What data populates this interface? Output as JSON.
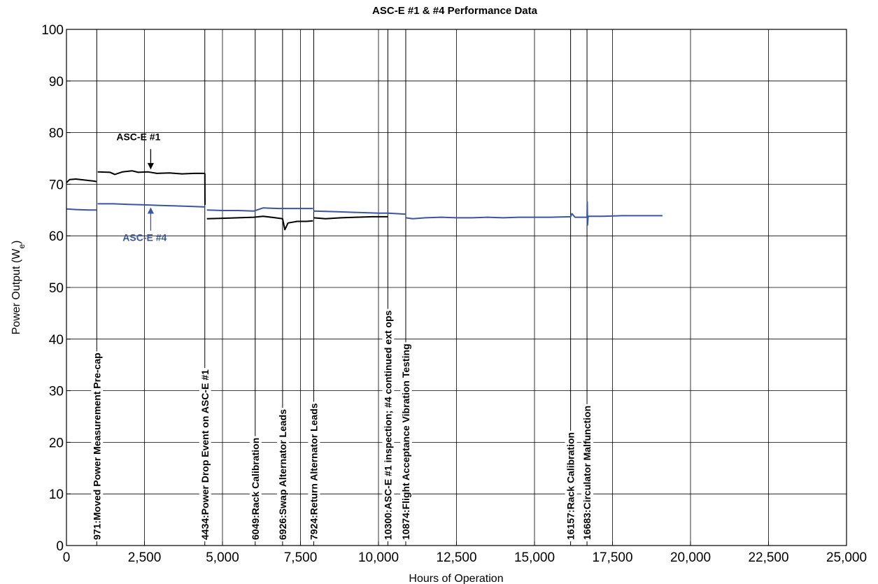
{
  "chart_data": {
    "type": "line",
    "title": "ASC-E #1 & #4 Performance Data",
    "xlabel": "Hours of Operation",
    "ylabel_main": "Power Output (W",
    "ylabel_sub": "e",
    "ylabel_close": ")",
    "xlim": [
      0,
      25000
    ],
    "ylim": [
      0,
      100
    ],
    "grid": true,
    "x_ticks": [
      {
        "value": 0,
        "label": "0"
      },
      {
        "value": 2500,
        "label": "2,500"
      },
      {
        "value": 5000,
        "label": "5,000"
      },
      {
        "value": 7500,
        "label": "7,500"
      },
      {
        "value": 10000,
        "label": "10,000"
      },
      {
        "value": 12500,
        "label": "12,500"
      },
      {
        "value": 15000,
        "label": "15,000"
      },
      {
        "value": 17500,
        "label": "17,500"
      },
      {
        "value": 20000,
        "label": "20,000"
      },
      {
        "value": 22500,
        "label": "22,500"
      },
      {
        "value": 25000,
        "label": "25,000"
      }
    ],
    "y_ticks": [
      {
        "value": 0,
        "label": "0"
      },
      {
        "value": 10,
        "label": "10"
      },
      {
        "value": 20,
        "label": "20"
      },
      {
        "value": 30,
        "label": "30"
      },
      {
        "value": 40,
        "label": "40"
      },
      {
        "value": 50,
        "label": "50"
      },
      {
        "value": 60,
        "label": "60"
      },
      {
        "value": 70,
        "label": "70"
      },
      {
        "value": 80,
        "label": "80"
      },
      {
        "value": 90,
        "label": "90"
      },
      {
        "value": 100,
        "label": "100"
      }
    ],
    "series": [
      {
        "name": "ASC-E #1",
        "color": "#000000",
        "segments": [
          [
            [
              0,
              70.3
            ],
            [
              100,
              70.9
            ],
            [
              300,
              71.0
            ],
            [
              600,
              70.8
            ],
            [
              900,
              70.6
            ],
            [
              960,
              70.5
            ]
          ],
          [
            [
              1000,
              72.4
            ],
            [
              1400,
              72.3
            ],
            [
              1550,
              71.9
            ],
            [
              1800,
              72.4
            ],
            [
              2100,
              72.6
            ],
            [
              2300,
              72.3
            ],
            [
              2600,
              72.4
            ],
            [
              2900,
              72.1
            ],
            [
              3300,
              72.2
            ],
            [
              3700,
              72.0
            ],
            [
              4100,
              72.1
            ],
            [
              4434,
              72.1
            ]
          ],
          [
            [
              4434,
              72.1
            ],
            [
              4440,
              66.0
            ]
          ],
          [
            [
              4500,
              63.3
            ],
            [
              5000,
              63.4
            ],
            [
              5500,
              63.5
            ],
            [
              6000,
              63.6
            ],
            [
              6300,
              63.8
            ],
            [
              6700,
              63.5
            ],
            [
              6926,
              63.3
            ],
            [
              7000,
              61.2
            ],
            [
              7100,
              62.5
            ],
            [
              7400,
              62.8
            ],
            [
              7700,
              62.8
            ],
            [
              7900,
              62.9
            ]
          ],
          [
            [
              7924,
              63.5
            ],
            [
              8300,
              63.3
            ],
            [
              8800,
              63.5
            ],
            [
              9300,
              63.6
            ],
            [
              9800,
              63.7
            ],
            [
              10300,
              63.7
            ]
          ]
        ]
      },
      {
        "name": "ASC-E #4",
        "color": "#3b55a0",
        "segments": [
          [
            [
              0,
              65.2
            ],
            [
              300,
              65.1
            ],
            [
              700,
              65.0
            ],
            [
              960,
              65.0
            ]
          ],
          [
            [
              1000,
              66.2
            ],
            [
              1500,
              66.2
            ],
            [
              2000,
              66.1
            ],
            [
              2500,
              66.0
            ],
            [
              3000,
              65.9
            ],
            [
              3500,
              65.8
            ],
            [
              4000,
              65.7
            ],
            [
              4434,
              65.6
            ]
          ],
          [
            [
              4500,
              65.0
            ],
            [
              5000,
              64.9
            ],
            [
              5500,
              64.9
            ],
            [
              6000,
              64.8
            ],
            [
              6300,
              65.4
            ],
            [
              6800,
              65.3
            ],
            [
              7300,
              65.3
            ],
            [
              7900,
              65.3
            ]
          ],
          [
            [
              7924,
              64.8
            ],
            [
              8500,
              64.7
            ],
            [
              9000,
              64.6
            ],
            [
              9500,
              64.5
            ],
            [
              10000,
              64.4
            ],
            [
              10300,
              64.4
            ],
            [
              10600,
              64.3
            ],
            [
              10874,
              64.2
            ]
          ],
          [
            [
              10874,
              63.5
            ],
            [
              11100,
              63.3
            ],
            [
              11500,
              63.5
            ],
            [
              12000,
              63.6
            ],
            [
              12500,
              63.5
            ],
            [
              13000,
              63.5
            ],
            [
              13500,
              63.6
            ],
            [
              14000,
              63.5
            ],
            [
              14500,
              63.6
            ],
            [
              15000,
              63.6
            ],
            [
              15500,
              63.6
            ],
            [
              16157,
              63.7
            ],
            [
              16200,
              64.3
            ],
            [
              16300,
              63.6
            ],
            [
              16683,
              63.6
            ],
            [
              16690,
              66.6
            ],
            [
              16700,
              62.1
            ],
            [
              16720,
              63.8
            ],
            [
              17200,
              63.8
            ],
            [
              17800,
              63.9
            ],
            [
              18400,
              63.9
            ],
            [
              19000,
              63.9
            ],
            [
              19100,
              63.9
            ]
          ]
        ]
      }
    ],
    "events": [
      {
        "x": 971,
        "label": "971:Moved Power Measurement Pre-cap"
      },
      {
        "x": 4434,
        "label": "4434:Power Drop Event on ASC-E #1"
      },
      {
        "x": 6049,
        "label": "6049:Rack Calibration"
      },
      {
        "x": 6926,
        "label": "6926:Swap Alternator Leads"
      },
      {
        "x": 7924,
        "label": "7924:Return Alternator Leads"
      },
      {
        "x": 10300,
        "label": "10300:ASC-E #1 inspection; #4 continued ext ops"
      },
      {
        "x": 10874,
        "label": "10874:Flight Acceptance Vibration Testing"
      },
      {
        "x": 16157,
        "label": "16157:Rack Calibration"
      },
      {
        "x": 16683,
        "label": "16683:Circulator Malfunction"
      }
    ],
    "annotations": [
      {
        "label": "ASC-E #1",
        "series": "ASC-E #1",
        "text_at": [
          1600,
          78.5
        ],
        "arrow_from": [
          2700,
          76.8
        ],
        "arrow_to": [
          2700,
          73.0
        ],
        "color": "#000000"
      },
      {
        "label": "ASC-E #4",
        "series": "ASC-E #4",
        "text_at": [
          1800,
          59.0
        ],
        "arrow_from": [
          2700,
          61.0
        ],
        "arrow_to": [
          2700,
          65.4
        ],
        "color": "#3b55a0"
      }
    ]
  }
}
